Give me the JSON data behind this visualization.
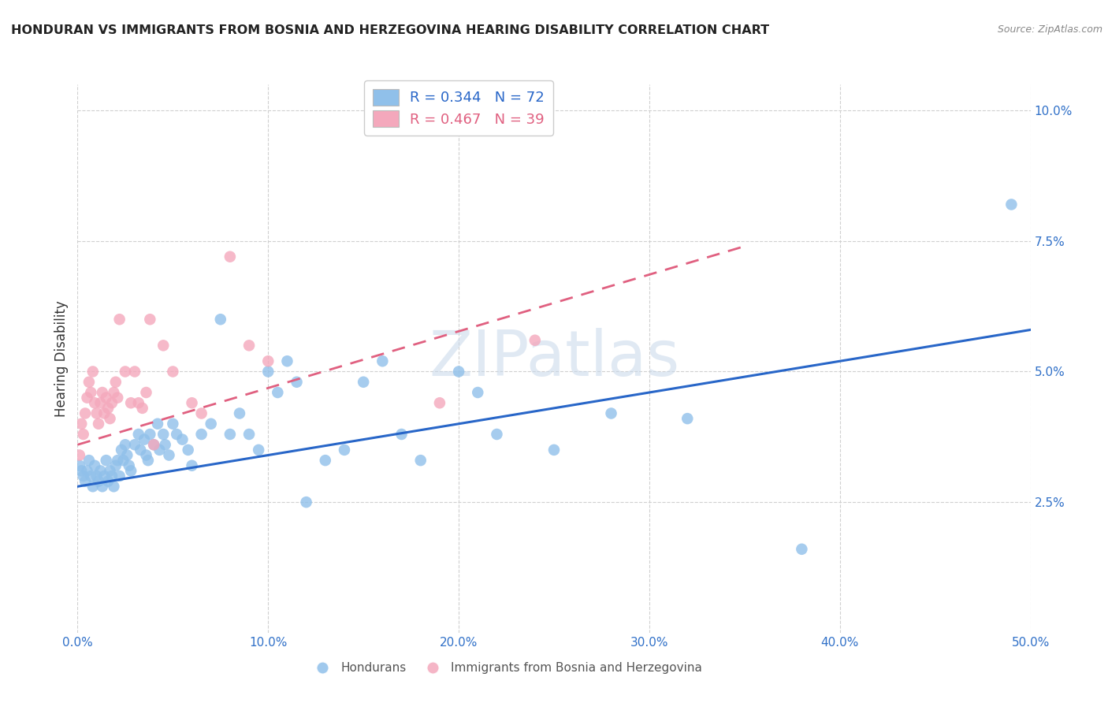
{
  "title": "HONDURAN VS IMMIGRANTS FROM BOSNIA AND HERZEGOVINA HEARING DISABILITY CORRELATION CHART",
  "source": "Source: ZipAtlas.com",
  "ylabel": "Hearing Disability",
  "xlim": [
    0.0,
    0.5
  ],
  "ylim": [
    0.0,
    0.105
  ],
  "ytick_vals": [
    0.025,
    0.05,
    0.075,
    0.1
  ],
  "ytick_labels": [
    "2.5%",
    "5.0%",
    "7.5%",
    "10.0%"
  ],
  "xtick_vals": [
    0.0,
    0.1,
    0.2,
    0.3,
    0.4,
    0.5
  ],
  "xtick_labels": [
    "0.0%",
    "10.0%",
    "20.0%",
    "30.0%",
    "40.0%",
    "50.0%"
  ],
  "legend_label_blue_rn": "R = 0.344   N = 72",
  "legend_label_pink_rn": "R = 0.467   N = 39",
  "legend_label_blue": "Hondurans",
  "legend_label_pink": "Immigrants from Bosnia and Herzegovina",
  "blue_color": "#90c0ea",
  "pink_color": "#f4a8bc",
  "blue_line_color": "#2866c8",
  "pink_line_color": "#e06080",
  "watermark": "ZIPatlas",
  "blue_scatter": [
    [
      0.001,
      0.032
    ],
    [
      0.002,
      0.031
    ],
    [
      0.003,
      0.03
    ],
    [
      0.004,
      0.029
    ],
    [
      0.005,
      0.031
    ],
    [
      0.006,
      0.033
    ],
    [
      0.007,
      0.03
    ],
    [
      0.008,
      0.028
    ],
    [
      0.009,
      0.032
    ],
    [
      0.01,
      0.03
    ],
    [
      0.011,
      0.029
    ],
    [
      0.012,
      0.031
    ],
    [
      0.013,
      0.028
    ],
    [
      0.014,
      0.03
    ],
    [
      0.015,
      0.033
    ],
    [
      0.016,
      0.029
    ],
    [
      0.017,
      0.031
    ],
    [
      0.018,
      0.03
    ],
    [
      0.019,
      0.028
    ],
    [
      0.02,
      0.032
    ],
    [
      0.021,
      0.033
    ],
    [
      0.022,
      0.03
    ],
    [
      0.023,
      0.035
    ],
    [
      0.024,
      0.033
    ],
    [
      0.025,
      0.036
    ],
    [
      0.026,
      0.034
    ],
    [
      0.027,
      0.032
    ],
    [
      0.028,
      0.031
    ],
    [
      0.03,
      0.036
    ],
    [
      0.032,
      0.038
    ],
    [
      0.033,
      0.035
    ],
    [
      0.035,
      0.037
    ],
    [
      0.036,
      0.034
    ],
    [
      0.037,
      0.033
    ],
    [
      0.038,
      0.038
    ],
    [
      0.04,
      0.036
    ],
    [
      0.042,
      0.04
    ],
    [
      0.043,
      0.035
    ],
    [
      0.045,
      0.038
    ],
    [
      0.046,
      0.036
    ],
    [
      0.048,
      0.034
    ],
    [
      0.05,
      0.04
    ],
    [
      0.052,
      0.038
    ],
    [
      0.055,
      0.037
    ],
    [
      0.058,
      0.035
    ],
    [
      0.06,
      0.032
    ],
    [
      0.065,
      0.038
    ],
    [
      0.07,
      0.04
    ],
    [
      0.075,
      0.06
    ],
    [
      0.08,
      0.038
    ],
    [
      0.085,
      0.042
    ],
    [
      0.09,
      0.038
    ],
    [
      0.095,
      0.035
    ],
    [
      0.1,
      0.05
    ],
    [
      0.105,
      0.046
    ],
    [
      0.11,
      0.052
    ],
    [
      0.115,
      0.048
    ],
    [
      0.12,
      0.025
    ],
    [
      0.13,
      0.033
    ],
    [
      0.14,
      0.035
    ],
    [
      0.15,
      0.048
    ],
    [
      0.16,
      0.052
    ],
    [
      0.17,
      0.038
    ],
    [
      0.18,
      0.033
    ],
    [
      0.2,
      0.05
    ],
    [
      0.21,
      0.046
    ],
    [
      0.22,
      0.038
    ],
    [
      0.25,
      0.035
    ],
    [
      0.28,
      0.042
    ],
    [
      0.32,
      0.041
    ],
    [
      0.38,
      0.016
    ],
    [
      0.49,
      0.082
    ]
  ],
  "pink_scatter": [
    [
      0.001,
      0.034
    ],
    [
      0.002,
      0.04
    ],
    [
      0.003,
      0.038
    ],
    [
      0.004,
      0.042
    ],
    [
      0.005,
      0.045
    ],
    [
      0.006,
      0.048
    ],
    [
      0.007,
      0.046
    ],
    [
      0.008,
      0.05
    ],
    [
      0.009,
      0.044
    ],
    [
      0.01,
      0.042
    ],
    [
      0.011,
      0.04
    ],
    [
      0.012,
      0.044
    ],
    [
      0.013,
      0.046
    ],
    [
      0.014,
      0.042
    ],
    [
      0.015,
      0.045
    ],
    [
      0.016,
      0.043
    ],
    [
      0.017,
      0.041
    ],
    [
      0.018,
      0.044
    ],
    [
      0.019,
      0.046
    ],
    [
      0.02,
      0.048
    ],
    [
      0.021,
      0.045
    ],
    [
      0.022,
      0.06
    ],
    [
      0.025,
      0.05
    ],
    [
      0.028,
      0.044
    ],
    [
      0.03,
      0.05
    ],
    [
      0.032,
      0.044
    ],
    [
      0.034,
      0.043
    ],
    [
      0.036,
      0.046
    ],
    [
      0.038,
      0.06
    ],
    [
      0.04,
      0.036
    ],
    [
      0.045,
      0.055
    ],
    [
      0.05,
      0.05
    ],
    [
      0.06,
      0.044
    ],
    [
      0.065,
      0.042
    ],
    [
      0.08,
      0.072
    ],
    [
      0.09,
      0.055
    ],
    [
      0.1,
      0.052
    ],
    [
      0.19,
      0.044
    ],
    [
      0.24,
      0.056
    ]
  ],
  "blue_line": {
    "x0": 0.0,
    "y0": 0.028,
    "x1": 0.5,
    "y1": 0.058
  },
  "pink_line": {
    "x0": 0.0,
    "y0": 0.036,
    "x1": 0.35,
    "y1": 0.074
  }
}
